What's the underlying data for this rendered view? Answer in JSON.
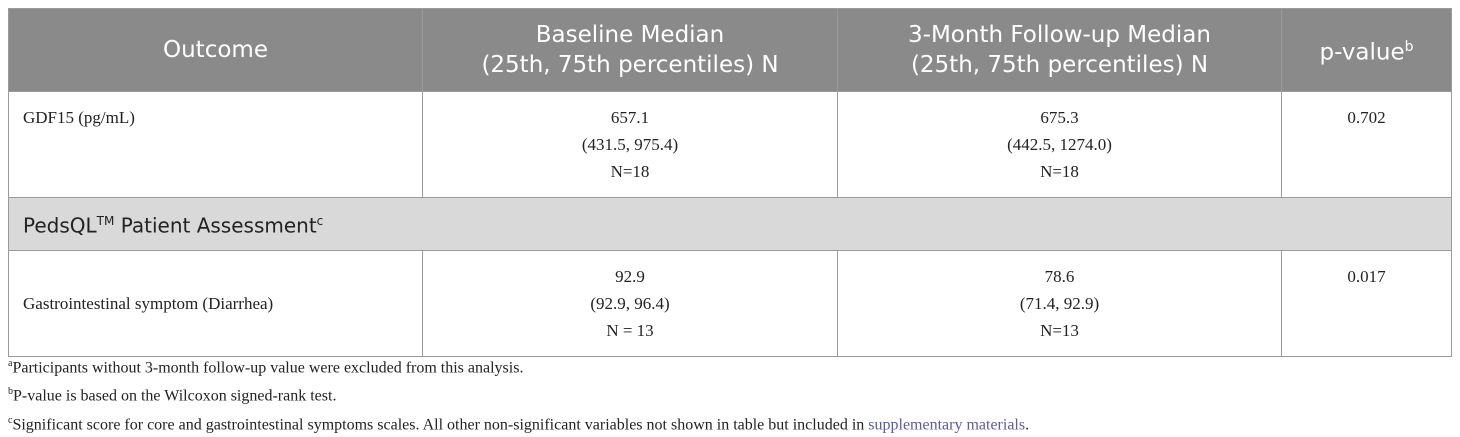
{
  "table": {
    "header": [
      {
        "lines": [
          "Outcome"
        ]
      },
      {
        "lines": [
          "Baseline Median",
          "(25th, 75th percentiles) N"
        ]
      },
      {
        "lines": [
          "3-Month Follow-up Median",
          "(25th, 75th percentiles) N"
        ]
      },
      {
        "lines": [
          "p-value"
        ],
        "sup": "b"
      }
    ],
    "rows": [
      {
        "outcome": "GDF15 (pg/mL)",
        "baseline": [
          "657.1",
          "(431.5, 975.4)",
          "N=18"
        ],
        "followup": [
          "675.3",
          "(442.5, 1274.0)",
          "N=18"
        ],
        "p": "0.702"
      },
      {
        "section": [
          "PedsQL",
          "TM",
          " Patient Assessment",
          "c"
        ]
      },
      {
        "outcome": "Gastrointestinal symptom (Diarrhea)",
        "baseline": [
          "92.9",
          "(92.9, 96.4)",
          "N = 13"
        ],
        "followup": [
          "78.6",
          "(71.4, 92.9)",
          "N=13"
        ],
        "p": "0.017"
      }
    ]
  },
  "footnotes": [
    {
      "mark": "a",
      "text": "Participants without 3-month follow-up value were excluded from this analysis."
    },
    {
      "mark": "b",
      "text": "P-value is based on the Wilcoxon signed-rank test."
    },
    {
      "mark": "c",
      "text": "Significant score for core and gastrointestinal symptoms scales. All other non-significant variables not shown in table but included in ",
      "link": "supplementary materials",
      "after": "."
    }
  ]
}
